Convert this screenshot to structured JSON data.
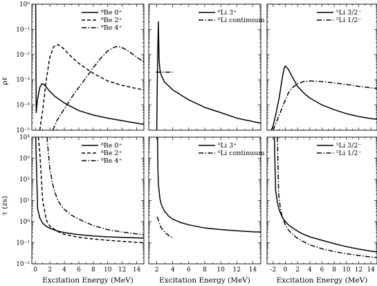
{
  "figure": {
    "xlabel": "Excitation Energy (MeV)",
    "ylabel_top": "ρℓ",
    "ylabel_bottom": "τ (zs)"
  },
  "chart_data": [
    {
      "type": "line",
      "row": "top",
      "col": 0,
      "yscale": "log",
      "xlim": [
        -0.5,
        15
      ],
      "ylim": [
        1e-05,
        1
      ],
      "xticks": [
        0,
        2,
        4,
        6,
        8,
        10,
        12,
        14
      ],
      "yticks": [
        1e-05,
        0.0001,
        0.001,
        0.01,
        0.1,
        1
      ],
      "ytick_labels": [
        "10⁻⁵",
        "10⁻⁴",
        "10⁻³",
        "10⁻²",
        "10⁻¹",
        "10⁰"
      ],
      "xlabel": "",
      "ylabel": "ρℓ",
      "legend": "top-right",
      "series": [
        {
          "name": "⁸Be 0⁺",
          "style": "solid",
          "x": [
            0.04,
            0.1,
            0.3,
            0.6,
            0.9,
            1.2,
            1.8,
            2.6,
            4,
            6,
            8,
            10,
            12,
            14,
            15
          ],
          "y": [
            1,
            5e-05,
            0.00018,
            0.0005,
            0.0007,
            0.00065,
            0.0004,
            0.00023,
            0.00012,
            6e-05,
            4e-05,
            3e-05,
            2.4e-05,
            1.9e-05,
            1.7e-05
          ]
        },
        {
          "name": "⁸Be 2⁺",
          "style": "dashed",
          "x": [
            0.6,
            1,
            1.5,
            2,
            2.5,
            3,
            3.5,
            4,
            5,
            6,
            7,
            8,
            10,
            12,
            14,
            15
          ],
          "y": [
            1e-05,
            6e-05,
            0.001,
            0.008,
            0.02,
            0.025,
            0.022,
            0.016,
            0.008,
            0.0045,
            0.0028,
            0.0018,
            0.0009,
            0.0006,
            0.00045,
            0.0004
          ]
        },
        {
          "name": "⁸Be 4⁺",
          "style": "dashdot",
          "x": [
            2.4,
            3,
            4,
            5,
            6,
            7,
            8,
            9,
            10,
            11,
            11.5,
            12,
            13,
            14,
            15
          ],
          "y": [
            1e-05,
            2.5e-05,
            7e-05,
            0.0002,
            0.0005,
            0.0012,
            0.003,
            0.007,
            0.014,
            0.02,
            0.021,
            0.019,
            0.013,
            0.008,
            0.005
          ]
        }
      ]
    },
    {
      "type": "line",
      "row": "top",
      "col": 1,
      "yscale": "log",
      "xlim": [
        1,
        15
      ],
      "ylim": [
        1e-05,
        1
      ],
      "xticks": [
        2,
        4,
        6,
        8,
        10,
        12,
        14
      ],
      "yticks": [
        1e-05,
        0.0001,
        0.001,
        0.01,
        0.1,
        1
      ],
      "legend": "top-right",
      "series": [
        {
          "name": "⁶Li 3⁺",
          "style": "solid",
          "x": [
            2,
            2.05,
            2.1,
            2.15,
            2.2,
            2.25,
            2.3,
            2.4,
            2.6,
            3,
            4,
            5,
            6,
            8,
            10,
            12,
            14,
            15
          ],
          "y": [
            1e-05,
            0.0003,
            0.003,
            0.03,
            0.2,
            0.03,
            0.006,
            0.0025,
            0.0014,
            0.0008,
            0.0004,
            0.00025,
            0.00016,
            8e-05,
            5e-05,
            3e-05,
            2.2e-05,
            1.9e-05
          ]
        },
        {
          "name": "⁶Li continuum",
          "style": "dashdot",
          "x": [
            1.9,
            4.0
          ],
          "y": [
            0.002,
            0.002
          ]
        }
      ]
    },
    {
      "type": "line",
      "row": "top",
      "col": 2,
      "yscale": "log",
      "xlim": [
        -3,
        15
      ],
      "ylim": [
        1e-05,
        1
      ],
      "xticks": [
        -2,
        0,
        2,
        4,
        6,
        8,
        10,
        12,
        14
      ],
      "yticks": [
        1e-05,
        0.0001,
        0.001,
        0.01,
        0.1,
        1
      ],
      "legend": "top-right",
      "series": [
        {
          "name": "⁵Li 3/2⁻",
          "style": "solid",
          "x": [
            -2.3,
            -2,
            -1.5,
            -1,
            -0.5,
            -0.2,
            0,
            0.5,
            1,
            1.5,
            2,
            3,
            4,
            6,
            8,
            10,
            12,
            14,
            15
          ],
          "y": [
            1e-05,
            1.5e-05,
            5e-05,
            0.0002,
            0.0012,
            0.0028,
            0.0035,
            0.0026,
            0.0015,
            0.0009,
            0.00055,
            0.0003,
            0.00019,
            0.0001,
            6.5e-05,
            4.5e-05,
            3.5e-05,
            2.9e-05,
            2.7e-05
          ]
        },
        {
          "name": "⁵Li 1/2⁻",
          "style": "dashdot",
          "x": [
            -2,
            -1.5,
            -1,
            -0.5,
            0,
            0.5,
            1,
            2,
            3,
            4,
            6,
            8,
            10,
            12,
            14,
            15
          ],
          "y": [
            1e-05,
            2e-05,
            4e-05,
            8e-05,
            0.00016,
            0.0003,
            0.00045,
            0.0007,
            0.00085,
            0.0009,
            0.00085,
            0.00075,
            0.00065,
            0.00055,
            0.00048,
            0.00045
          ]
        }
      ]
    },
    {
      "type": "line",
      "row": "bottom",
      "col": 0,
      "yscale": "log",
      "xlim": [
        -0.5,
        15
      ],
      "ylim": [
        0.01,
        10000.0
      ],
      "xticks": [
        0,
        2,
        4,
        6,
        8,
        10,
        12,
        14
      ],
      "xtick_labels": [
        "0",
        "2",
        "4",
        "6",
        "8",
        "10",
        "12",
        "14"
      ],
      "yticks": [
        0.01,
        0.1,
        1,
        10,
        100,
        1000,
        10000
      ],
      "ytick_labels": [
        "10⁻²",
        "10⁻¹",
        "10⁰",
        "10¹",
        "10²",
        "10³",
        "10⁴"
      ],
      "xlabel": "Excitation Energy (MeV)",
      "ylabel": "τ (zs)",
      "legend": "top-right",
      "series": [
        {
          "name": "⁸Be 0⁺",
          "style": "solid",
          "x": [
            0.04,
            0.3,
            0.6,
            1,
            1.5,
            2,
            3,
            4,
            6,
            8,
            10,
            12,
            14,
            15
          ],
          "y": [
            10000.0,
            4,
            1.5,
            0.85,
            0.6,
            0.48,
            0.36,
            0.3,
            0.24,
            0.21,
            0.19,
            0.18,
            0.17,
            0.165
          ]
        },
        {
          "name": "⁸Be 2⁺",
          "style": "dashed",
          "x": [
            0.4,
            0.6,
            1,
            1.5,
            2,
            3,
            4,
            6,
            8,
            10,
            12,
            14,
            15
          ],
          "y": [
            10000.0,
            2000.0,
            10,
            1.2,
            0.6,
            0.35,
            0.25,
            0.18,
            0.15,
            0.13,
            0.115,
            0.105,
            0.1
          ]
        },
        {
          "name": "⁸Be 4⁺",
          "style": "dashdot",
          "x": [
            1.6,
            2,
            2.5,
            3,
            3.5,
            4,
            5,
            6,
            8,
            10,
            12,
            14,
            15
          ],
          "y": [
            10000.0,
            300,
            40,
            12,
            6,
            3.8,
            2,
            1.3,
            0.65,
            0.42,
            0.32,
            0.26,
            0.24
          ]
        }
      ]
    },
    {
      "type": "line",
      "row": "bottom",
      "col": 1,
      "yscale": "log",
      "xlim": [
        1,
        15
      ],
      "ylim": [
        0.01,
        10000.0
      ],
      "xticks": [
        2,
        4,
        6,
        8,
        10,
        12,
        14
      ],
      "xtick_labels": [
        "2",
        "4",
        "6",
        "8",
        "10",
        "12",
        "14"
      ],
      "yticks": [
        0.01,
        0.1,
        1,
        10,
        100,
        1000,
        10000
      ],
      "xlabel": "Excitation Energy (MeV)",
      "legend": "top-right",
      "series": [
        {
          "name": "⁶Li 3⁺",
          "style": "solid",
          "x": [
            2.1,
            2.15,
            2.2,
            2.4,
            2.6,
            3,
            3.5,
            4,
            5,
            6,
            8,
            10,
            12,
            14,
            15
          ],
          "y": [
            10000.0,
            300,
            60,
            12,
            6,
            3,
            1.8,
            1.3,
            0.9,
            0.7,
            0.5,
            0.42,
            0.37,
            0.33,
            0.32
          ]
        },
        {
          "name": "⁶Li continuum",
          "style": "dashdot",
          "x": [
            2.05,
            2.5,
            3,
            3.5,
            4.0
          ],
          "y": [
            1.7,
            0.55,
            0.32,
            0.22,
            0.17
          ]
        }
      ]
    },
    {
      "type": "line",
      "row": "bottom",
      "col": 2,
      "yscale": "log",
      "xlim": [
        -3,
        15
      ],
      "ylim": [
        0.01,
        10000.0
      ],
      "xticks": [
        -2,
        0,
        2,
        4,
        6,
        8,
        10,
        12,
        14
      ],
      "xtick_labels": [
        "-2",
        "0",
        "2",
        "4",
        "6",
        "8",
        "10",
        "12",
        "14"
      ],
      "yticks": [
        0.01,
        0.1,
        1,
        10,
        100,
        1000,
        10000
      ],
      "xlabel": "Excitation Energy (MeV)",
      "legend": "top-right",
      "series": [
        {
          "name": "⁵Li 3/2⁻",
          "style": "solid",
          "x": [
            -1.8,
            -1.6,
            -1.3,
            -1,
            -0.5,
            0,
            0.5,
            1,
            2,
            3,
            4,
            6,
            8,
            10,
            12,
            14,
            15
          ],
          "y": [
            10000.0,
            30,
            8,
            3.5,
            1.6,
            1,
            0.7,
            0.55,
            0.35,
            0.25,
            0.19,
            0.13,
            0.09,
            0.065,
            0.05,
            0.04,
            0.037
          ]
        },
        {
          "name": "⁵Li 1/2⁻",
          "style": "dashdot",
          "x": [
            -1.3,
            -1.1,
            -0.8,
            -0.5,
            0,
            0.5,
            1,
            2,
            3,
            4,
            6,
            8,
            10,
            12,
            14,
            15
          ],
          "y": [
            10000.0,
            20,
            4,
            1.6,
            0.7,
            0.4,
            0.28,
            0.16,
            0.11,
            0.08,
            0.052,
            0.038,
            0.03,
            0.025,
            0.021,
            0.02
          ]
        }
      ]
    }
  ]
}
